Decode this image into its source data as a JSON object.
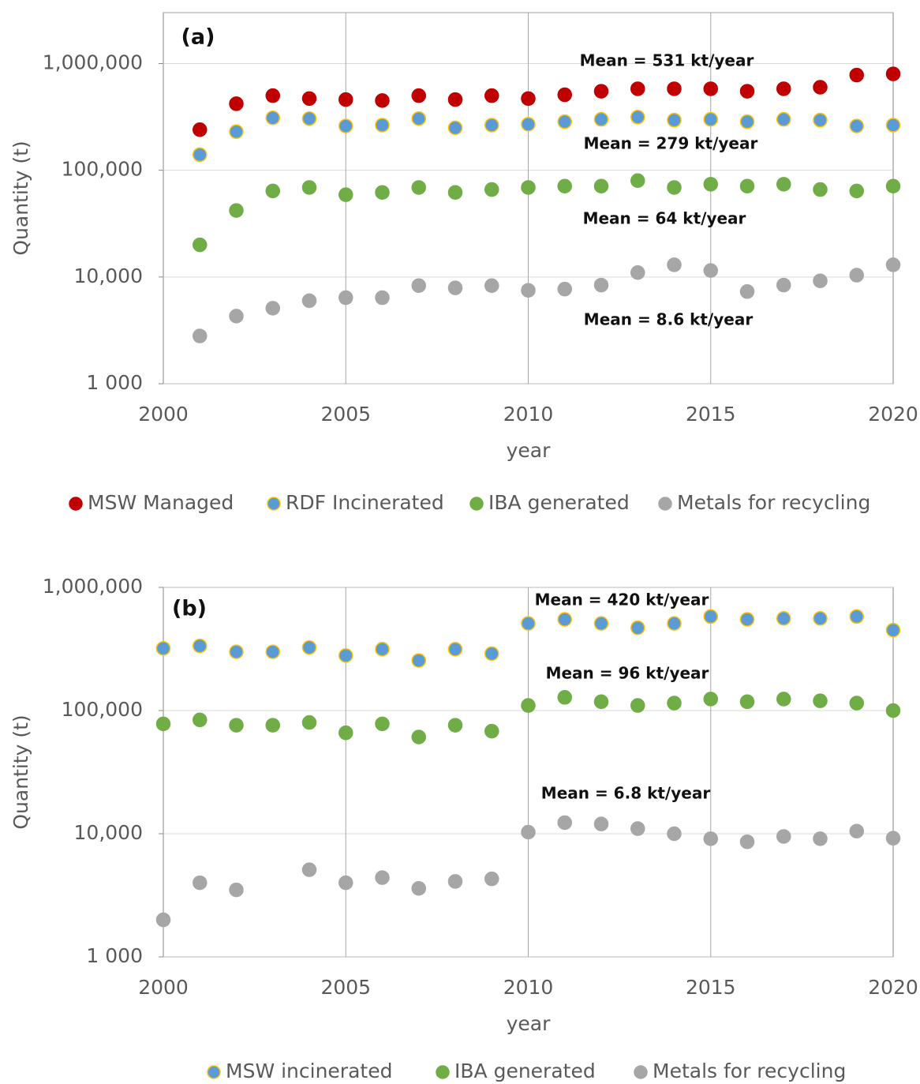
{
  "chart_data": [
    {
      "type": "scatter",
      "ylog": true,
      "grid": true,
      "label": "(a)",
      "xlabel": "year",
      "ylabel": "Quantity (t)",
      "x": [
        2001,
        2002,
        2003,
        2004,
        2005,
        2006,
        2007,
        2008,
        2009,
        2010,
        2011,
        2012,
        2013,
        2014,
        2015,
        2016,
        2017,
        2018,
        2019,
        2020
      ],
      "series": [
        {
          "name": "MSW Managed",
          "color": "#c00000",
          "edge": "#c00000",
          "values": [
            240000,
            420000,
            500000,
            470000,
            460000,
            450000,
            500000,
            460000,
            500000,
            470000,
            510000,
            550000,
            580000,
            580000,
            580000,
            550000,
            580000,
            600000,
            780000,
            800000
          ]
        },
        {
          "name": "RDF Incinerated",
          "color": "#5b9bd5",
          "edge": "#ffc000",
          "values": [
            140000,
            230000,
            310000,
            305000,
            260000,
            265000,
            305000,
            250000,
            265000,
            270000,
            285000,
            300000,
            315000,
            295000,
            300000,
            285000,
            300000,
            295000,
            260000,
            265000
          ]
        },
        {
          "name": "IBA generated",
          "color": "#70ad47",
          "edge": "#70ad47",
          "values": [
            20000,
            42000,
            64000,
            69000,
            59000,
            62000,
            69000,
            62000,
            66000,
            69000,
            71000,
            71000,
            80000,
            69000,
            74000,
            71000,
            74000,
            66000,
            64000,
            71000
          ]
        },
        {
          "name": "Metals for recycling",
          "color": "#a6a6a6",
          "edge": "#a6a6a6",
          "values": [
            2800,
            4300,
            5100,
            6000,
            6400,
            6400,
            8300,
            7900,
            8300,
            7500,
            7700,
            8400,
            11000,
            13000,
            11500,
            7300,
            8400,
            9200,
            10400,
            13000
          ]
        }
      ],
      "annotations": [
        "Mean = 531 kt/year",
        "Mean = 279 kt/year",
        "Mean = 64 kt/year",
        "Mean = 8.6 kt/year"
      ],
      "xlim": [
        2000,
        2020
      ],
      "xticks": [
        2000,
        2005,
        2010,
        2015,
        2020
      ],
      "ylim": [
        1000,
        3000000
      ],
      "yticks": [
        {
          "value": 1000,
          "label": "1 000"
        },
        {
          "value": 10000,
          "label": "10,000"
        },
        {
          "value": 100000,
          "label": "100,000"
        },
        {
          "value": 1000000,
          "label": "1,000,000"
        }
      ]
    },
    {
      "type": "scatter",
      "ylog": true,
      "grid": true,
      "label": "(b)",
      "xlabel": "year",
      "ylabel": "Quantity (t)",
      "x": [
        2000,
        2001,
        2002,
        2003,
        2004,
        2005,
        2006,
        2007,
        2008,
        2009,
        2010,
        2011,
        2012,
        2013,
        2014,
        2015,
        2016,
        2017,
        2018,
        2019,
        2020
      ],
      "series": [
        {
          "name": "MSW incinerated",
          "color": "#5b9bd5",
          "edge": "#ffc000",
          "values": [
            320000,
            335000,
            300000,
            300000,
            325000,
            280000,
            315000,
            255000,
            315000,
            290000,
            510000,
            550000,
            510000,
            470000,
            510000,
            580000,
            550000,
            560000,
            560000,
            580000,
            450000
          ]
        },
        {
          "name": "IBA generated",
          "color": "#70ad47",
          "edge": "#70ad47",
          "values": [
            78000,
            84000,
            76000,
            76000,
            80000,
            66000,
            78000,
            61000,
            76000,
            68000,
            110000,
            128000,
            118000,
            110000,
            115000,
            124000,
            118000,
            124000,
            120000,
            115000,
            100000
          ]
        },
        {
          "name": "Metals for recycling",
          "color": "#a6a6a6",
          "edge": "#a6a6a6",
          "values": [
            2000,
            4000,
            3500,
            null,
            5100,
            4000,
            4400,
            3600,
            4100,
            4300,
            10300,
            12300,
            12000,
            11000,
            10000,
            9100,
            8600,
            9500,
            9100,
            10500,
            9200
          ]
        }
      ],
      "annotations": [
        "Mean = 420 kt/year",
        "Mean = 96 kt/year",
        "Mean = 6.8 kt/year"
      ],
      "xlim": [
        2000,
        2020
      ],
      "xticks": [
        2000,
        2005,
        2010,
        2015,
        2020
      ],
      "ylim": [
        1000,
        1000000
      ],
      "yticks": [
        {
          "value": 1000,
          "label": "1 000"
        },
        {
          "value": 10000,
          "label": "10,000"
        },
        {
          "value": 100000,
          "label": "100,000"
        },
        {
          "value": 1000000,
          "label": "1,000,000"
        }
      ]
    }
  ]
}
